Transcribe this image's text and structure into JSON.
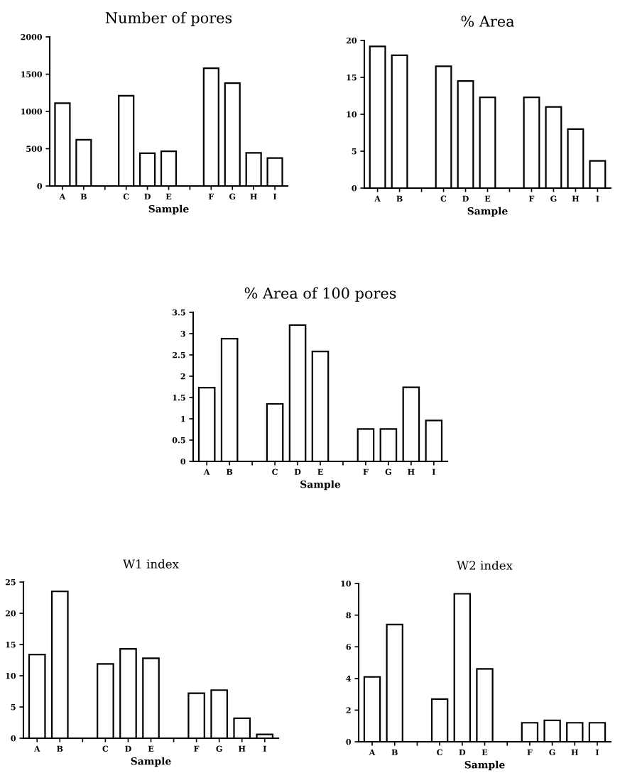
{
  "chart_data": [
    {
      "type": "bar",
      "title": "Number of pores",
      "xlabel": "Sample",
      "categories": [
        "A",
        "B",
        null,
        "C",
        "D",
        "E",
        null,
        "F",
        "G",
        "H",
        "I"
      ],
      "values": [
        1110,
        620,
        null,
        1210,
        440,
        465,
        null,
        1580,
        1380,
        445,
        375
      ],
      "color": "#ffffff",
      "ylim": [
        0,
        2000
      ],
      "yticks": [
        0,
        500,
        1000,
        1500,
        2000
      ],
      "grid": false
    },
    {
      "type": "bar",
      "title": "% Area",
      "xlabel": "Sample",
      "categories": [
        "A",
        "B",
        null,
        "C",
        "D",
        "E",
        null,
        "F",
        "G",
        "H",
        "I"
      ],
      "values": [
        19.2,
        18.0,
        null,
        16.5,
        14.5,
        12.3,
        null,
        12.3,
        11.0,
        8.0,
        3.7
      ],
      "color": "#ffffff",
      "ylim": [
        0,
        20
      ],
      "yticks": [
        0,
        5,
        10,
        15,
        20
      ],
      "grid": false
    },
    {
      "type": "bar",
      "title": "% Area of 100 pores",
      "xlabel": "Sample",
      "categories": [
        "A",
        "B",
        null,
        "C",
        "D",
        "E",
        null,
        "F",
        "G",
        "H",
        "I"
      ],
      "values": [
        1.73,
        2.88,
        null,
        1.35,
        3.2,
        2.58,
        null,
        0.76,
        0.76,
        1.74,
        0.96
      ],
      "color": "#ffffff",
      "ylim": [
        0,
        3.5
      ],
      "yticks": [
        0,
        {
          "value": 0.5,
          "label": "0.5"
        },
        1,
        {
          "value": 1.5,
          "label": "1.5"
        },
        2,
        {
          "value": 2.5,
          "label": "2.5"
        },
        3,
        {
          "value": 3.5,
          "label": "3.5"
        }
      ],
      "grid": false
    },
    {
      "type": "bar",
      "title": "W1 index",
      "xlabel": "Sample",
      "categories": [
        "A",
        "B",
        null,
        "C",
        "D",
        "E",
        null,
        "F",
        "G",
        "H",
        "I"
      ],
      "values": [
        13.4,
        23.5,
        null,
        11.9,
        14.3,
        12.8,
        null,
        7.2,
        7.7,
        3.2,
        0.6
      ],
      "color": "#ffffff",
      "ylim": [
        0,
        25
      ],
      "yticks": [
        0,
        5,
        10,
        15,
        20,
        25
      ],
      "grid": false
    },
    {
      "type": "bar",
      "title": "W2 index",
      "xlabel": "Sample",
      "categories": [
        "A",
        "B",
        null,
        "C",
        "D",
        "E",
        null,
        "F",
        "G",
        "H",
        "I"
      ],
      "values": [
        4.1,
        7.4,
        null,
        2.7,
        9.35,
        4.6,
        null,
        1.2,
        1.35,
        1.2,
        1.2
      ],
      "color": "#ffffff",
      "ylim": [
        0,
        10
      ],
      "yticks": [
        0,
        2,
        4,
        6,
        8,
        10
      ],
      "grid": false
    }
  ]
}
